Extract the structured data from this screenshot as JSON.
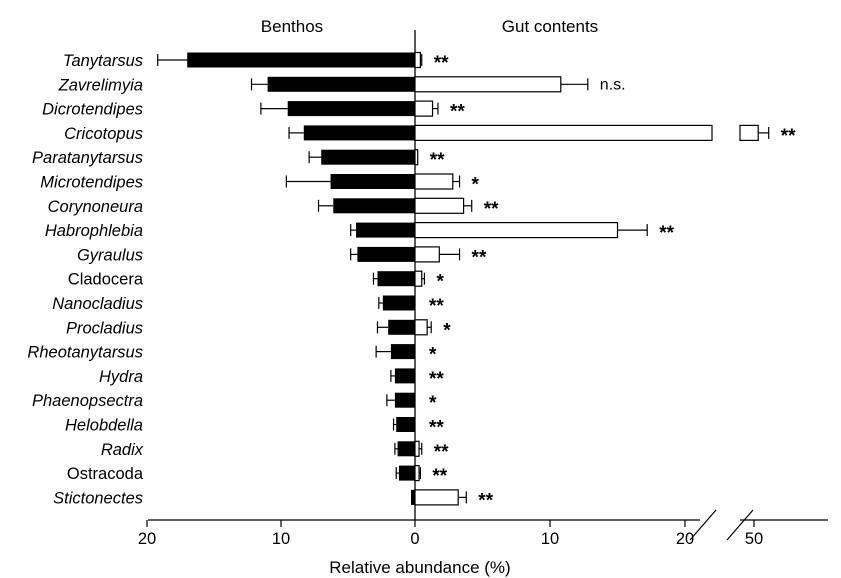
{
  "chart_data": {
    "type": "bar",
    "panel_titles": {
      "left": "Benthos",
      "right": "Gut contents"
    },
    "xlabel": "Relative abundance (%)",
    "x_ticks_left": [
      "20",
      "10",
      "0"
    ],
    "x_ticks_right": [
      "10",
      "20",
      "50"
    ],
    "categories": [
      {
        "label": "Tanytarsus",
        "italic": true
      },
      {
        "label": "Zavrelimyia",
        "italic": true
      },
      {
        "label": "Dicrotendipes",
        "italic": true
      },
      {
        "label": "Cricotopus",
        "italic": true
      },
      {
        "label": "Paratanytarsus",
        "italic": true
      },
      {
        "label": "Microtendipes",
        "italic": true
      },
      {
        "label": "Corynoneura",
        "italic": true
      },
      {
        "label": "Habrophlebia",
        "italic": true
      },
      {
        "label": "Gyraulus",
        "italic": true
      },
      {
        "label": "Cladocera",
        "italic": false
      },
      {
        "label": "Nanocladius",
        "italic": true
      },
      {
        "label": "Procladius",
        "italic": true
      },
      {
        "label": "Rheotanytarsus",
        "italic": true
      },
      {
        "label": "Hydra",
        "italic": true
      },
      {
        "label": "Phaenopsectra",
        "italic": true
      },
      {
        "label": "Helobdella",
        "italic": true
      },
      {
        "label": "Radix",
        "italic": true
      },
      {
        "label": "Ostracoda",
        "italic": false
      },
      {
        "label": "Stictonectes",
        "italic": true
      }
    ],
    "series": [
      {
        "name": "Benthos",
        "values": [
          17.0,
          11.0,
          9.5,
          8.3,
          7.0,
          6.3,
          6.1,
          4.4,
          4.3,
          2.8,
          2.4,
          2.0,
          1.8,
          1.5,
          1.5,
          1.4,
          1.3,
          1.2,
          0.3
        ],
        "errors": [
          2.2,
          1.2,
          2.0,
          1.1,
          0.9,
          3.3,
          1.1,
          0.4,
          0.5,
          0.3,
          0.3,
          0.8,
          1.1,
          0.3,
          0.6,
          0.2,
          0.2,
          0.2,
          0.0
        ]
      },
      {
        "name": "Gut contents",
        "values": [
          0.4,
          10.8,
          1.3,
          52.0,
          0.2,
          2.8,
          3.6,
          15.0,
          1.8,
          0.5,
          0.0,
          0.9,
          0.0,
          0.0,
          0.0,
          0.0,
          0.3,
          0.3,
          3.2
        ],
        "errors": [
          0.1,
          2.0,
          0.4,
          5.0,
          0.0,
          0.5,
          0.6,
          2.2,
          1.5,
          0.2,
          0.0,
          0.3,
          0.0,
          0.0,
          0.0,
          0.0,
          0.2,
          0.1,
          0.6
        ]
      }
    ],
    "significance": [
      "**",
      "n.s.",
      "**",
      "**",
      "**",
      "*",
      "**",
      "**",
      "**",
      "*",
      "**",
      "*",
      "*",
      "**",
      "*",
      "**",
      "**",
      "**",
      "**"
    ],
    "x_range_left": [
      0,
      20
    ],
    "x_range_right": [
      0,
      20
    ],
    "x_axis_break": [
      20,
      50
    ],
    "grid": false,
    "colors": {
      "benthos": "#000000",
      "gut": "#ffffff",
      "outline": "#000000"
    }
  }
}
